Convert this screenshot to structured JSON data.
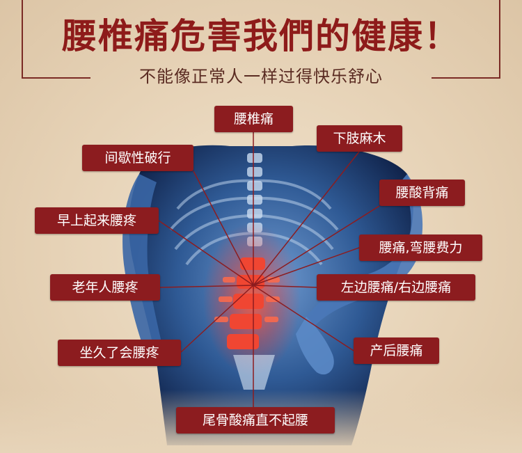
{
  "header": {
    "title": "腰椎痛危害我們的健康！",
    "subtitle": "不能像正常人一样过得快乐舒心"
  },
  "labels": {
    "lumbar_pain": "腰椎痛",
    "limb_numbness": "下肢麻木",
    "intermittent_claudication": "间歇性破行",
    "back_soreness": "腰酸背痛",
    "morning_back_pain": "早上起来腰疼",
    "bending_difficulty": "腰痛,弯腰费力",
    "elderly_back_pain": "老年人腰疼",
    "left_right_back_pain": "左边腰痛/右边腰痛",
    "sitting_back_pain": "坐久了会腰疼",
    "postpartum_back_pain": "产后腰痛",
    "tailbone_pain": "尾骨酸痛直不起腰"
  },
  "colors": {
    "title_red": "#8e1b1a",
    "label_bg": "#8c1c1f",
    "background": "#e7d4b9",
    "body_blue": "#2f5a95",
    "pain_red": "#e8362c"
  }
}
